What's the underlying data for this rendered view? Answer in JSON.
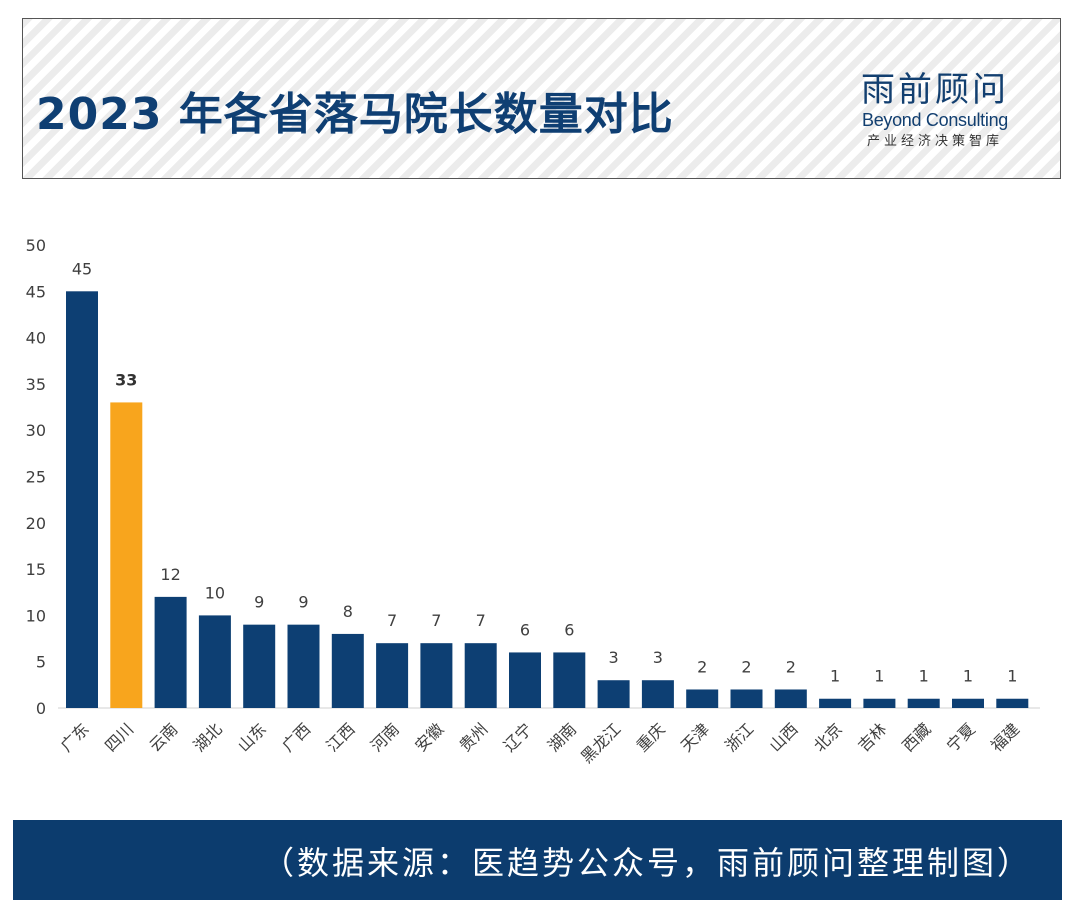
{
  "header": {
    "title": "2023 年各省落马院长数量对比",
    "logo_cn": "雨前顾问",
    "logo_en": "Beyond Consulting",
    "logo_sub": "产业经济决策智库"
  },
  "footer": {
    "source": "（数据来源：医趋势公众号，雨前顾问整理制图）"
  },
  "colors": {
    "bar": "#0d3f73",
    "highlight": "#f8a51d",
    "axis_text": "#404040",
    "footer_bg": "#0c3c6e"
  },
  "chart_data": {
    "type": "bar",
    "title": "2023 年各省落马院长数量对比",
    "xlabel": "",
    "ylabel": "",
    "ylim": [
      0,
      50
    ],
    "yticks": [
      0,
      5,
      10,
      15,
      20,
      25,
      30,
      35,
      40,
      45,
      50
    ],
    "categories": [
      "广东",
      "四川",
      "云南",
      "湖北",
      "山东",
      "广西",
      "江西",
      "河南",
      "安徽",
      "贵州",
      "辽宁",
      "湖南",
      "黑龙江",
      "重庆",
      "天津",
      "浙江",
      "山西",
      "北京",
      "吉林",
      "西藏",
      "宁夏",
      "福建"
    ],
    "values": [
      45,
      33,
      12,
      10,
      9,
      9,
      8,
      7,
      7,
      7,
      6,
      6,
      3,
      3,
      2,
      2,
      2,
      1,
      1,
      1,
      1,
      1
    ],
    "highlight_category": "四川",
    "grid": false
  }
}
